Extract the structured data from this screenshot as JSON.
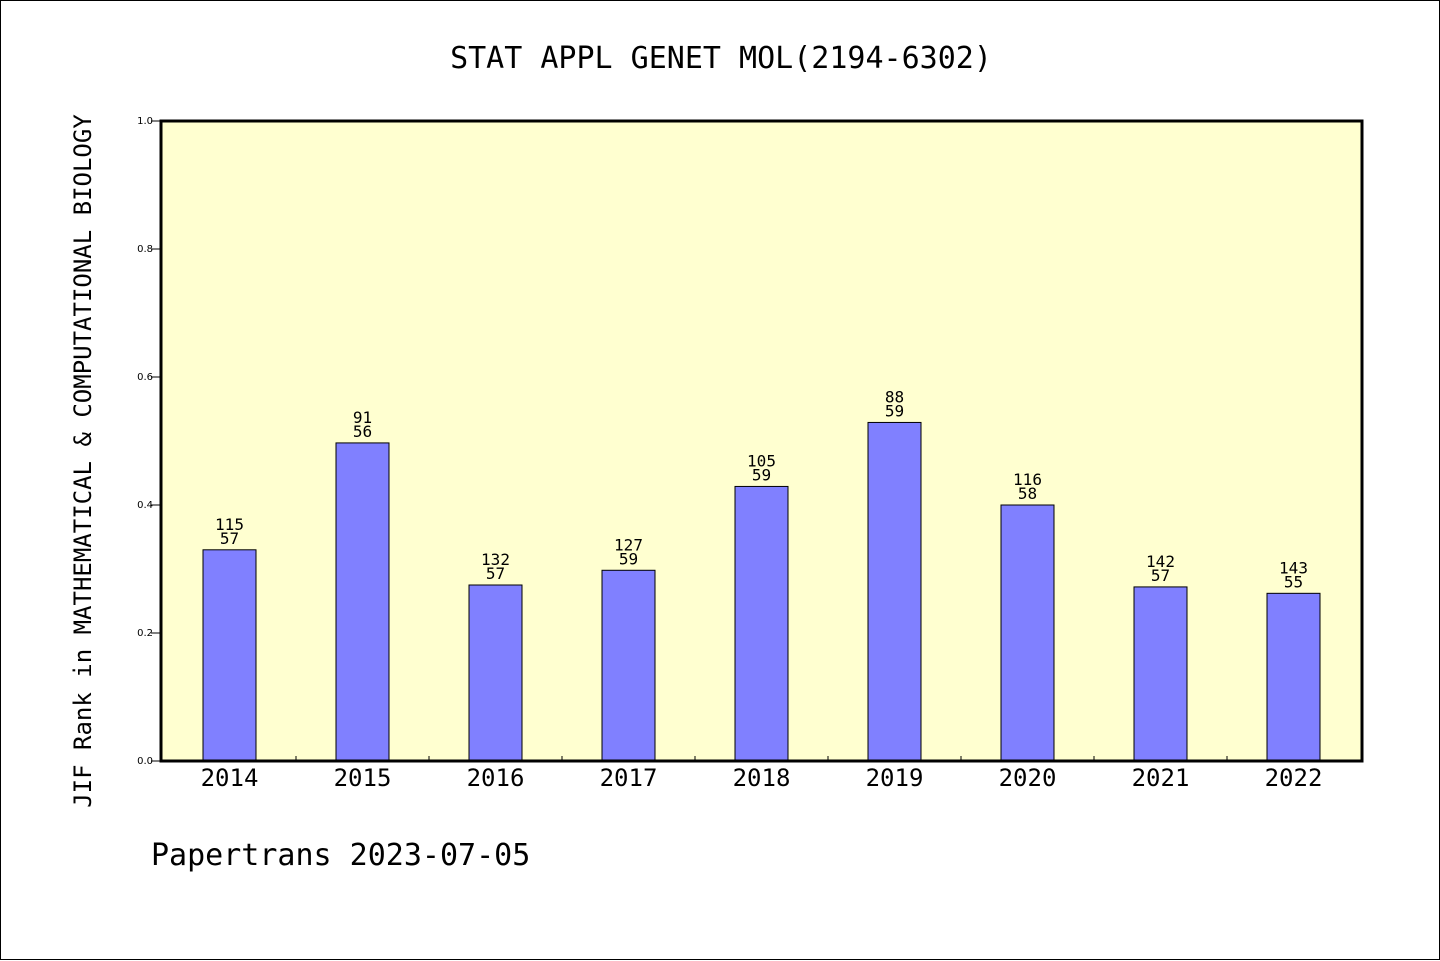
{
  "chart_data": {
    "type": "bar",
    "title": "STAT APPL GENET MOL(2194-6302)",
    "ylabel": "JIF Rank in MATHEMATICAL & COMPUTATIONAL BIOLOGY",
    "xlabel": "",
    "ylim": [
      0.0,
      1.0
    ],
    "yticks": [
      "0.0",
      "0.2",
      "0.4",
      "0.6",
      "0.8",
      "1.0"
    ],
    "categories": [
      "2014",
      "2015",
      "2016",
      "2017",
      "2018",
      "2019",
      "2020",
      "2021",
      "2022"
    ],
    "values": [
      0.33,
      0.497,
      0.275,
      0.298,
      0.429,
      0.529,
      0.4,
      0.272,
      0.262
    ],
    "rank_labels": [
      "115",
      "91",
      "132",
      "127",
      "105",
      "88",
      "116",
      "142",
      "143"
    ],
    "count_labels": [
      "57",
      "56",
      "57",
      "59",
      "59",
      "59",
      "58",
      "57",
      "55"
    ],
    "grid": false,
    "legend": "none",
    "colors": {
      "bar_fill": "#8080ff",
      "plot_background": "#ffffd0",
      "axis": "#000000"
    }
  },
  "footer": {
    "text": "Papertrans 2023-07-05"
  }
}
